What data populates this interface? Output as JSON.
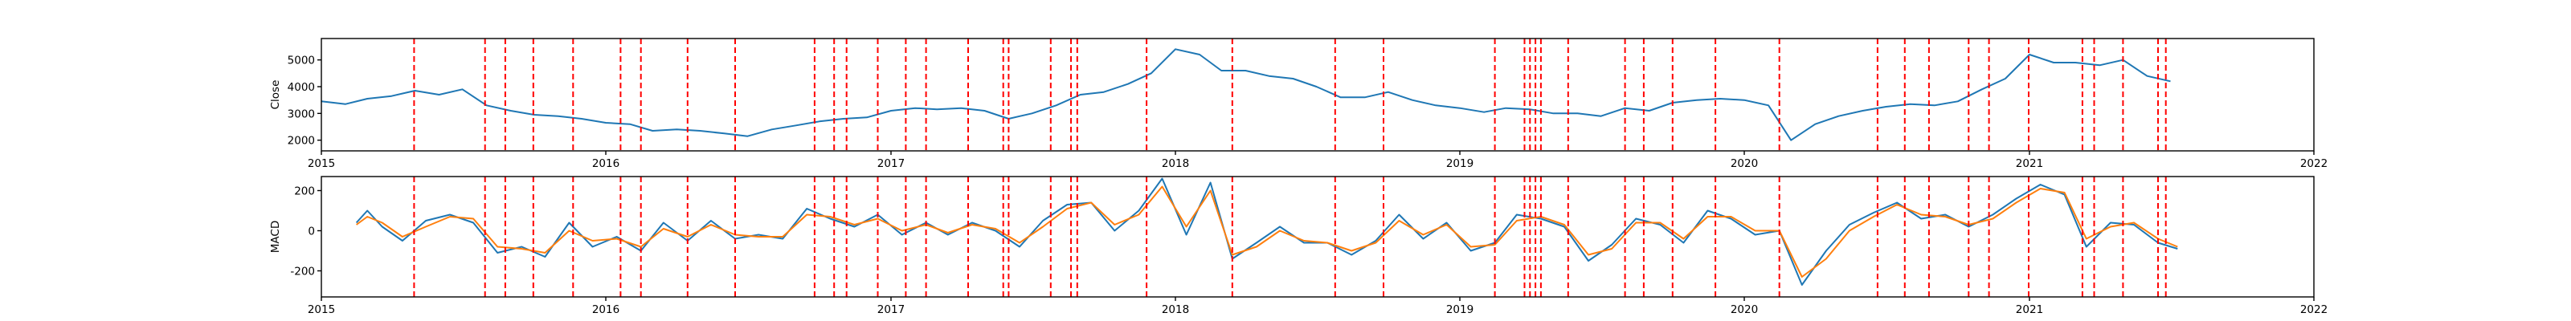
{
  "chart_data": [
    {
      "type": "line",
      "title": "",
      "xlabel": "",
      "ylabel": "Close",
      "xlim": [
        "2015-01-01",
        "2022-01-01"
      ],
      "ylim": [
        1600,
        5800
      ],
      "x_ticks": [
        "2015",
        "2016",
        "2017",
        "2018",
        "2019",
        "2020",
        "2021",
        "2022"
      ],
      "y_ticks": [
        2000,
        3000,
        4000,
        5000
      ],
      "grid": false,
      "series": [
        {
          "color": "#1f77b4",
          "x": [
            "2015-01-01",
            "2015-02-01",
            "2015-03-01",
            "2015-04-01",
            "2015-05-01",
            "2015-06-01",
            "2015-07-01",
            "2015-08-01",
            "2015-09-01",
            "2015-10-01",
            "2015-11-01",
            "2015-12-01",
            "2016-01-01",
            "2016-02-01",
            "2016-03-01",
            "2016-04-01",
            "2016-05-01",
            "2016-06-01",
            "2016-07-01",
            "2016-08-01",
            "2016-09-01",
            "2016-10-01",
            "2016-11-01",
            "2016-12-01",
            "2017-01-01",
            "2017-02-01",
            "2017-03-01",
            "2017-04-01",
            "2017-05-01",
            "2017-06-01",
            "2017-07-01",
            "2017-08-01",
            "2017-09-01",
            "2017-10-01",
            "2017-11-01",
            "2017-12-01",
            "2018-01-01",
            "2018-02-01",
            "2018-03-01",
            "2018-04-01",
            "2018-05-01",
            "2018-06-01",
            "2018-07-01",
            "2018-08-01",
            "2018-09-01",
            "2018-10-01",
            "2018-11-01",
            "2018-12-01",
            "2019-01-01",
            "2019-02-01",
            "2019-03-01",
            "2019-04-01",
            "2019-05-01",
            "2019-06-01",
            "2019-07-01",
            "2019-08-01",
            "2019-09-01",
            "2019-10-01",
            "2019-11-01",
            "2019-12-01",
            "2020-01-01",
            "2020-02-01",
            "2020-03-01",
            "2020-04-01",
            "2020-05-01",
            "2020-06-01",
            "2020-07-01",
            "2020-08-01",
            "2020-09-01",
            "2020-10-01",
            "2020-11-01",
            "2020-12-01",
            "2021-01-01",
            "2021-02-01",
            "2021-03-01",
            "2021-04-01",
            "2021-05-01",
            "2021-06-01",
            "2021-07-01"
          ],
          "values": [
            3450,
            3350,
            3550,
            3650,
            3850,
            3700,
            3900,
            3300,
            3100,
            2950,
            2900,
            2800,
            2650,
            2600,
            2350,
            2400,
            2350,
            2250,
            2150,
            2400,
            2550,
            2700,
            2800,
            2850,
            3100,
            3200,
            3150,
            3200,
            3100,
            2800,
            3000,
            3300,
            3700,
            3800,
            4100,
            4500,
            5400,
            5200,
            4600,
            4600,
            4400,
            4300,
            4000,
            3600,
            3600,
            3800,
            3500,
            3300,
            3200,
            3050,
            3200,
            3150,
            3000,
            3000,
            2900,
            3200,
            3100,
            3400,
            3500,
            3550,
            3500,
            3300,
            2000,
            2600,
            2900,
            3100,
            3250,
            3350,
            3300,
            3450,
            3900,
            4300,
            5200,
            4900,
            4900,
            4800,
            5000,
            4400,
            4200
          ]
        }
      ],
      "vlines": [
        "2015-04-30",
        "2015-07-30",
        "2015-08-25",
        "2015-09-30",
        "2015-11-20",
        "2016-01-20",
        "2016-02-15",
        "2016-04-15",
        "2016-06-15",
        "2016-09-25",
        "2016-10-20",
        "2016-11-05",
        "2016-12-15",
        "2017-01-20",
        "2017-02-15",
        "2017-04-10",
        "2017-05-25",
        "2017-06-01",
        "2017-07-25",
        "2017-08-20",
        "2017-08-28",
        "2017-11-25",
        "2018-03-15",
        "2018-07-25",
        "2018-09-25",
        "2019-02-15",
        "2019-03-25",
        "2019-04-01",
        "2019-04-08",
        "2019-04-15",
        "2019-05-20",
        "2019-08-01",
        "2019-08-25",
        "2019-10-01",
        "2019-11-25",
        "2020-02-15",
        "2020-06-20",
        "2020-07-25",
        "2020-08-25",
        "2020-10-15",
        "2020-11-10",
        "2020-12-31",
        "2021-03-10",
        "2021-03-25",
        "2021-05-01",
        "2021-06-15",
        "2021-06-25"
      ]
    },
    {
      "type": "line",
      "title": "",
      "xlabel": "",
      "ylabel": "MACD",
      "xlim": [
        "2015-01-01",
        "2022-01-01"
      ],
      "ylim": [
        -330,
        270
      ],
      "x_ticks": [
        "2015",
        "2016",
        "2017",
        "2018",
        "2019",
        "2020",
        "2021",
        "2022"
      ],
      "y_ticks": [
        -200,
        0,
        200
      ],
      "grid": false,
      "series": [
        {
          "color": "#1f77b4",
          "x": [
            "2015-02-15",
            "2015-03-01",
            "2015-03-20",
            "2015-04-15",
            "2015-05-15",
            "2015-06-15",
            "2015-07-15",
            "2015-08-15",
            "2015-09-15",
            "2015-10-15",
            "2015-11-15",
            "2015-12-15",
            "2016-01-15",
            "2016-02-15",
            "2016-03-15",
            "2016-04-15",
            "2016-05-15",
            "2016-06-15",
            "2016-07-15",
            "2016-08-15",
            "2016-09-15",
            "2016-10-15",
            "2016-11-15",
            "2016-12-15",
            "2017-01-15",
            "2017-02-15",
            "2017-03-15",
            "2017-04-15",
            "2017-05-15",
            "2017-06-15",
            "2017-07-15",
            "2017-08-15",
            "2017-09-15",
            "2017-10-15",
            "2017-11-15",
            "2017-12-15",
            "2018-01-15",
            "2018-02-15",
            "2018-03-15",
            "2018-04-15",
            "2018-05-15",
            "2018-06-15",
            "2018-07-15",
            "2018-08-15",
            "2018-09-15",
            "2018-10-15",
            "2018-11-15",
            "2018-12-15",
            "2019-01-15",
            "2019-02-15",
            "2019-03-15",
            "2019-04-15",
            "2019-05-15",
            "2019-06-15",
            "2019-07-15",
            "2019-08-15",
            "2019-09-15",
            "2019-10-15",
            "2019-11-15",
            "2019-12-15",
            "2020-01-15",
            "2020-02-15",
            "2020-03-15",
            "2020-04-15",
            "2020-05-15",
            "2020-06-15",
            "2020-07-15",
            "2020-08-15",
            "2020-09-15",
            "2020-10-15",
            "2020-11-15",
            "2020-12-15",
            "2021-01-15",
            "2021-02-15",
            "2021-03-15",
            "2021-04-15",
            "2021-05-15",
            "2021-06-15",
            "2021-07-10"
          ],
          "values": [
            40,
            100,
            20,
            -50,
            50,
            80,
            40,
            -110,
            -80,
            -130,
            40,
            -80,
            -30,
            -100,
            40,
            -50,
            50,
            -40,
            -20,
            -40,
            110,
            60,
            20,
            80,
            -20,
            40,
            -20,
            40,
            0,
            -80,
            50,
            130,
            140,
            0,
            100,
            260,
            -20,
            240,
            -140,
            -60,
            20,
            -60,
            -60,
            -120,
            -50,
            80,
            -40,
            40,
            -100,
            -60,
            80,
            60,
            20,
            -150,
            -70,
            60,
            30,
            -60,
            100,
            60,
            -20,
            0,
            -270,
            -100,
            30,
            90,
            140,
            60,
            80,
            20,
            80,
            160,
            230,
            180,
            -80,
            40,
            30,
            -60,
            -90
          ]
        },
        {
          "color": "#ff7f0e",
          "x": [
            "2015-02-15",
            "2015-03-01",
            "2015-03-20",
            "2015-04-15",
            "2015-05-15",
            "2015-06-15",
            "2015-07-15",
            "2015-08-15",
            "2015-09-15",
            "2015-10-15",
            "2015-11-15",
            "2015-12-15",
            "2016-01-15",
            "2016-02-15",
            "2016-03-15",
            "2016-04-15",
            "2016-05-15",
            "2016-06-15",
            "2016-07-15",
            "2016-08-15",
            "2016-09-15",
            "2016-10-15",
            "2016-11-15",
            "2016-12-15",
            "2017-01-15",
            "2017-02-15",
            "2017-03-15",
            "2017-04-15",
            "2017-05-15",
            "2017-06-15",
            "2017-07-15",
            "2017-08-15",
            "2017-09-15",
            "2017-10-15",
            "2017-11-15",
            "2017-12-15",
            "2018-01-15",
            "2018-02-15",
            "2018-03-15",
            "2018-04-15",
            "2018-05-15",
            "2018-06-15",
            "2018-07-15",
            "2018-08-15",
            "2018-09-15",
            "2018-10-15",
            "2018-11-15",
            "2018-12-15",
            "2019-01-15",
            "2019-02-15",
            "2019-03-15",
            "2019-04-15",
            "2019-05-15",
            "2019-06-15",
            "2019-07-15",
            "2019-08-15",
            "2019-09-15",
            "2019-10-15",
            "2019-11-15",
            "2019-12-15",
            "2020-01-15",
            "2020-02-15",
            "2020-03-15",
            "2020-04-15",
            "2020-05-15",
            "2020-06-15",
            "2020-07-15",
            "2020-08-15",
            "2020-09-15",
            "2020-10-15",
            "2020-11-15",
            "2020-12-15",
            "2021-01-15",
            "2021-02-15",
            "2021-03-15",
            "2021-04-15",
            "2021-05-15",
            "2021-06-15",
            "2021-07-10"
          ],
          "values": [
            30,
            70,
            40,
            -30,
            20,
            70,
            60,
            -80,
            -90,
            -110,
            0,
            -50,
            -40,
            -80,
            10,
            -30,
            30,
            -20,
            -30,
            -30,
            80,
            70,
            30,
            60,
            0,
            30,
            -10,
            30,
            10,
            -60,
            20,
            110,
            140,
            30,
            80,
            220,
            20,
            200,
            -120,
            -80,
            0,
            -50,
            -60,
            -100,
            -60,
            50,
            -20,
            30,
            -80,
            -70,
            50,
            70,
            30,
            -120,
            -90,
            40,
            40,
            -40,
            70,
            70,
            0,
            0,
            -230,
            -140,
            0,
            70,
            130,
            80,
            70,
            30,
            60,
            140,
            210,
            190,
            -40,
            20,
            40,
            -40,
            -80
          ]
        }
      ],
      "vlines": [
        "2015-04-30",
        "2015-07-30",
        "2015-08-25",
        "2015-09-30",
        "2015-11-20",
        "2016-01-20",
        "2016-02-15",
        "2016-04-15",
        "2016-06-15",
        "2016-09-25",
        "2016-10-20",
        "2016-11-05",
        "2016-12-15",
        "2017-01-20",
        "2017-02-15",
        "2017-04-10",
        "2017-05-25",
        "2017-06-01",
        "2017-07-25",
        "2017-08-20",
        "2017-08-28",
        "2017-11-25",
        "2018-03-15",
        "2018-07-25",
        "2018-09-25",
        "2019-02-15",
        "2019-03-25",
        "2019-04-01",
        "2019-04-08",
        "2019-04-15",
        "2019-05-20",
        "2019-08-01",
        "2019-08-25",
        "2019-10-01",
        "2019-11-25",
        "2020-02-15",
        "2020-06-20",
        "2020-07-25",
        "2020-08-25",
        "2020-10-15",
        "2020-11-10",
        "2020-12-31",
        "2021-03-10",
        "2021-03-25",
        "2021-05-01",
        "2021-06-15",
        "2021-06-25"
      ]
    }
  ]
}
